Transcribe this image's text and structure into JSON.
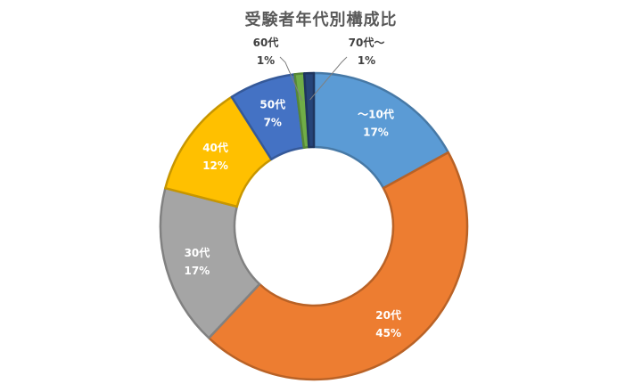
{
  "chart_data": {
    "type": "pie",
    "variant": "doughnut",
    "title": "受験者年代別構成比",
    "series": [
      {
        "name": "",
        "slices": [
          {
            "label": "〜10代",
            "value": 17,
            "value_label": "17%",
            "color": "#5B9BD5",
            "label_color": "#ffffff"
          },
          {
            "label": "20代",
            "value": 45,
            "value_label": "45%",
            "color": "#ED7D31",
            "label_color": "#ffffff"
          },
          {
            "label": "30代",
            "value": 17,
            "value_label": "17%",
            "color": "#A5A5A5",
            "label_color": "#ffffff"
          },
          {
            "label": "40代",
            "value": 12,
            "value_label": "12%",
            "color": "#FFC000",
            "label_color": "#ffffff"
          },
          {
            "label": "50代",
            "value": 7,
            "value_label": "7%",
            "color": "#4472C4",
            "label_color": "#ffffff"
          },
          {
            "label": "60代",
            "value": 1,
            "value_label": "1%",
            "color": "#70AD47",
            "label_color": "#404040"
          },
          {
            "label": "70代〜",
            "value": 1,
            "value_label": "1%",
            "color": "#264478",
            "label_color": "#404040"
          }
        ]
      }
    ],
    "start_angle_deg": 0,
    "direction": "clockwise",
    "legend": "none"
  }
}
